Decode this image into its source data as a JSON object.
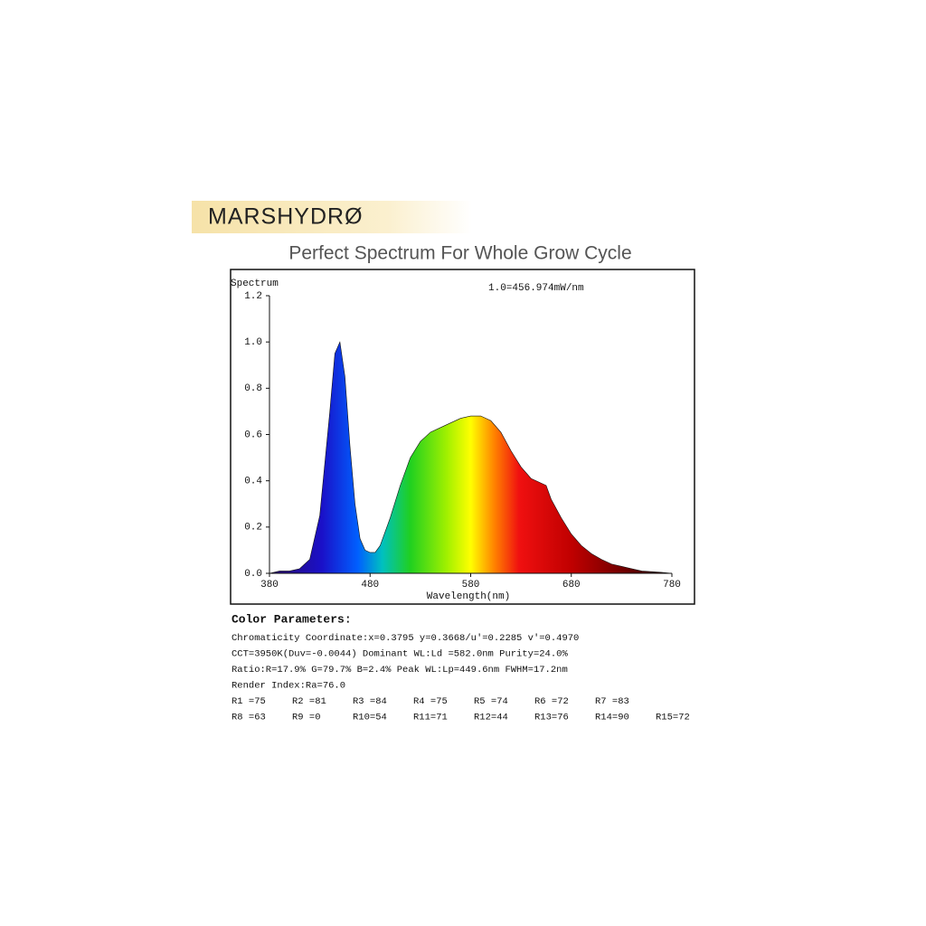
{
  "brand": "MARSHYDRØ",
  "headline": "Perfect Spectrum For Whole Grow Cycle",
  "chart_data": {
    "type": "area",
    "y_label": "Spectrum",
    "annotation": "1.0=456.974mW/nm",
    "x_label": "Wavelength(nm)",
    "x": [
      380,
      390,
      400,
      410,
      420,
      430,
      440,
      445,
      450,
      455,
      460,
      465,
      470,
      475,
      480,
      485,
      490,
      500,
      510,
      520,
      530,
      540,
      550,
      560,
      570,
      580,
      590,
      600,
      610,
      620,
      630,
      640,
      650,
      655,
      660,
      670,
      680,
      690,
      700,
      710,
      720,
      730,
      740,
      750,
      760,
      770,
      780
    ],
    "values": [
      0,
      0.01,
      0.01,
      0.02,
      0.06,
      0.25,
      0.7,
      0.95,
      1.0,
      0.85,
      0.55,
      0.3,
      0.15,
      0.1,
      0.09,
      0.09,
      0.12,
      0.24,
      0.38,
      0.5,
      0.57,
      0.61,
      0.63,
      0.65,
      0.67,
      0.68,
      0.68,
      0.66,
      0.61,
      0.53,
      0.46,
      0.41,
      0.39,
      0.38,
      0.32,
      0.24,
      0.17,
      0.12,
      0.085,
      0.06,
      0.04,
      0.03,
      0.02,
      0.01,
      0.007,
      0.004,
      0
    ],
    "xlim": [
      380,
      780
    ],
    "xticks": [
      380,
      480,
      580,
      680,
      780
    ],
    "ylim": [
      0,
      1.2
    ],
    "yticks": [
      {
        "value": 0,
        "label": "0.0"
      },
      0.2,
      0.4,
      0.6,
      0.8,
      {
        "value": 1,
        "label": "1.0"
      },
      1.2
    ]
  },
  "color_parameters": {
    "title": "Color Parameters:",
    "lines": [
      "Chromaticity Coordinate:x=0.3795  y=0.3668/u'=0.2285 v'=0.4970",
      "CCT=3950K(Duv=-0.0044) Dominant WL:Ld =582.0nm Purity=24.0%",
      "Ratio:R=17.9% G=79.7% B=2.4%  Peak WL:Lp=449.6nm  FWHM=17.2nm",
      "Render Index:Ra=76.0"
    ],
    "r_rows": [
      [
        "R1 =75",
        "R2 =81",
        "R3 =84",
        "R4 =75",
        "R5 =74",
        "R6 =72",
        "R7 =83"
      ],
      [
        "R8 =63",
        "R9 =0",
        "R10=54",
        "R11=71",
        "R12=44",
        "R13=76",
        "R14=90",
        "R15=72"
      ]
    ]
  }
}
